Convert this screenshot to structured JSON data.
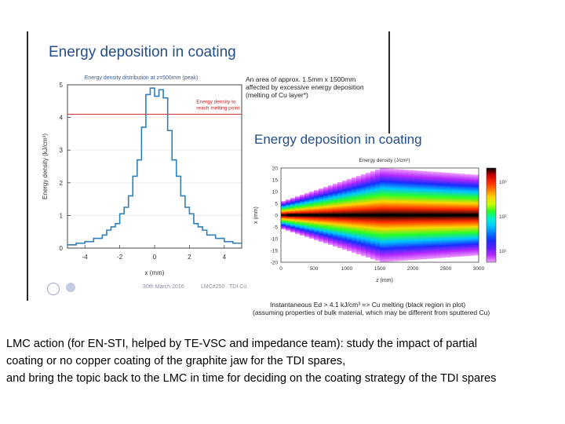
{
  "slide": {
    "left_panel_title": "Energy deposition in coating",
    "right_panel_title": "Energy deposition in coating",
    "annotation": [
      "An area of approx. 1.5mm x 1500mm",
      "affected by excessive energy deposition",
      "(melting of Cu layer*)"
    ],
    "caption": [
      "Instantaneous Ed > 4.1 kJ/cm³ => Cu melting     (black region in plot)",
      "(assuming properties of bulk material, which may be different from sputtered Cu)"
    ],
    "body_lines": [
      "LMC action (for EN-STI, helped by TE-VSC and impedance team): study the impact of partial",
      " coating or no copper coating of the graphite jaw for the TDI spares,",
      " and bring the topic back to the LMC in time for deciding on the coating strategy of the TDI spares"
    ],
    "footer": {
      "date": "30th March 2016",
      "meeting": "LMC#250",
      "name": "TDI Co"
    }
  },
  "chart_data": [
    {
      "type": "line",
      "title": "Energy density distribution at z=500mm (peak)",
      "xlabel": "x (mm)",
      "ylabel": "Energy density (kJ/cm³)",
      "xlim": [
        -5,
        5
      ],
      "ylim": [
        0,
        5
      ],
      "xticks": [
        "-4",
        "-2",
        "0",
        "2",
        "4"
      ],
      "yticks": [
        "0",
        "1",
        "2",
        "3",
        "4",
        "5"
      ],
      "threshold": {
        "value": 4.1,
        "label": [
          "Energy density to",
          "reach melting point"
        ],
        "color": "#d11a1a"
      },
      "series": [
        {
          "name": "energy density",
          "x": [
            -5.0,
            -4.5,
            -4.0,
            -3.5,
            -3.0,
            -2.75,
            -2.5,
            -2.25,
            -2.0,
            -1.75,
            -1.5,
            -1.25,
            -1.0,
            -0.75,
            -0.5,
            -0.25,
            0.0,
            0.25,
            0.5,
            0.75,
            1.0,
            1.25,
            1.5,
            1.75,
            2.0,
            2.25,
            2.5,
            2.75,
            3.0,
            3.5,
            4.0,
            4.5
          ],
          "values": [
            0.1,
            0.15,
            0.2,
            0.3,
            0.4,
            0.55,
            0.65,
            0.75,
            1.05,
            1.25,
            1.6,
            2.2,
            2.7,
            3.7,
            4.7,
            4.9,
            4.65,
            4.85,
            4.6,
            3.6,
            2.7,
            2.2,
            1.6,
            1.25,
            1.05,
            0.75,
            0.65,
            0.55,
            0.4,
            0.3,
            0.2,
            0.15
          ]
        }
      ]
    },
    {
      "type": "heatmap",
      "title": "Energy density (J/cm³)",
      "xlabel": "z (mm)",
      "ylabel": "x (mm)",
      "xlim": [
        0,
        3000
      ],
      "ylim": [
        -20,
        20
      ],
      "xticks": [
        "0",
        "500",
        "1000",
        "1500",
        "2000",
        "2500",
        "3000"
      ],
      "yticks": [
        "20",
        "15",
        "10",
        "5",
        "0",
        "-5",
        "-10",
        "-15",
        "-20"
      ],
      "colorbar_ticks": [
        "10³",
        "10²",
        "10¹"
      ],
      "colorbar_stops": [
        "#000000",
        "#cc0000",
        "#ff2a00",
        "#ff7a00",
        "#ffd400",
        "#c8ff00",
        "#28ff28",
        "#00f0d0",
        "#00c8ff",
        "#0078ff",
        "#1a2cff",
        "#5a1eff",
        "#b428ff",
        "#f0a0ff"
      ]
    }
  ]
}
